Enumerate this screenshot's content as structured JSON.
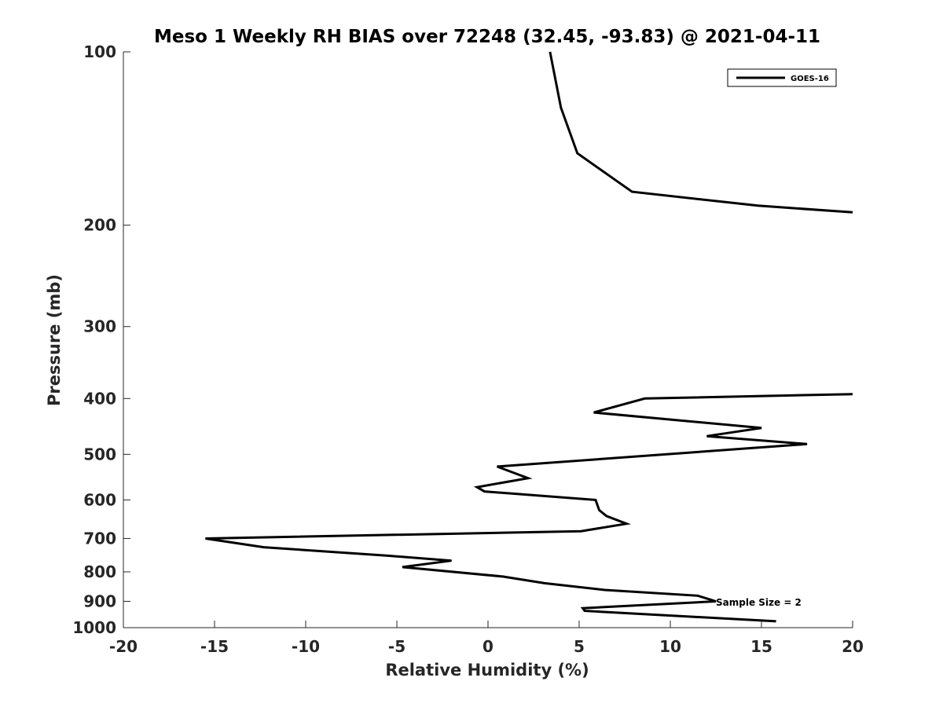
{
  "chart_data": {
    "type": "line",
    "title": "Meso 1 Weekly RH BIAS over 72248 (32.45, -93.83) @ 2021-04-11",
    "xlabel": "Relative Humidity (%)",
    "ylabel": "Pressure (mb)",
    "xlim": [
      -20,
      20
    ],
    "ylim": [
      100,
      1000
    ],
    "y_scale": "log",
    "y_inverted": true,
    "x_ticks": [
      -20,
      -15,
      -10,
      -5,
      0,
      5,
      10,
      15,
      20
    ],
    "x_tick_labels": [
      "-20",
      "-15",
      "-10",
      "-5",
      "0",
      "5",
      "10",
      "15",
      "20"
    ],
    "y_ticks": [
      100,
      200,
      300,
      400,
      500,
      600,
      700,
      800,
      900,
      1000
    ],
    "y_tick_labels": [
      "100",
      "200",
      "300",
      "400",
      "500",
      "600",
      "700",
      "800",
      "900",
      "1000"
    ],
    "grid": false,
    "legend_position": "top-right",
    "annotation": "Sample Size = 2",
    "series": [
      {
        "name": "GOES-16",
        "color": "#000000",
        "segments": [
          [
            {
              "x": 3.4,
              "p": 100
            },
            {
              "x": 4.0,
              "p": 125
            },
            {
              "x": 4.9,
              "p": 150
            },
            {
              "x": 7.9,
              "p": 175
            },
            {
              "x": 14.8,
              "p": 185
            },
            {
              "x": 20.0,
              "p": 190
            }
          ],
          [
            {
              "x": 20.0,
              "p": 393
            },
            {
              "x": 8.6,
              "p": 400
            },
            {
              "x": 5.8,
              "p": 423
            },
            {
              "x": 15.0,
              "p": 450
            },
            {
              "x": 12.0,
              "p": 465
            },
            {
              "x": 17.5,
              "p": 480
            },
            {
              "x": 0.5,
              "p": 525
            },
            {
              "x": 2.2,
              "p": 550
            },
            {
              "x": -0.6,
              "p": 570
            },
            {
              "x": -0.2,
              "p": 580
            },
            {
              "x": 5.9,
              "p": 600
            },
            {
              "x": 6.1,
              "p": 625
            },
            {
              "x": 6.5,
              "p": 640
            },
            {
              "x": 7.6,
              "p": 660
            },
            {
              "x": 5.1,
              "p": 680
            },
            {
              "x": -15.5,
              "p": 700
            },
            {
              "x": -12.3,
              "p": 725
            },
            {
              "x": -5.5,
              "p": 750
            },
            {
              "x": -2.0,
              "p": 765
            },
            {
              "x": -4.7,
              "p": 785
            },
            {
              "x": 0.8,
              "p": 815
            },
            {
              "x": 3.1,
              "p": 837
            },
            {
              "x": 6.4,
              "p": 860
            },
            {
              "x": 11.5,
              "p": 880
            },
            {
              "x": 12.5,
              "p": 900
            },
            {
              "x": 5.2,
              "p": 925
            },
            {
              "x": 5.3,
              "p": 935
            },
            {
              "x": 15.8,
              "p": 975
            }
          ]
        ]
      }
    ]
  }
}
